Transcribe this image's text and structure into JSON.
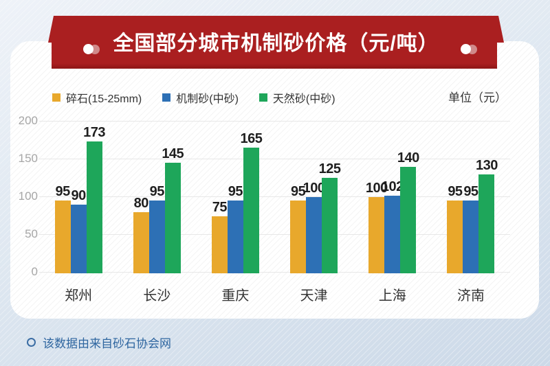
{
  "banner": {
    "title": "全国部分城市机制砂价格（元/吨）"
  },
  "legend": {
    "items": [
      {
        "label": "碎石(15-25mm)",
        "color": "#e8a82c"
      },
      {
        "label": "机制砂(中砂)",
        "color": "#2d70b5"
      },
      {
        "label": "天然砂(中砂)",
        "color": "#1ea65a"
      }
    ],
    "unit_label": "单位（元）"
  },
  "chart_data": {
    "type": "bar",
    "title": "全国部分城市机制砂价格（元/吨）",
    "categories": [
      "郑州",
      "长沙",
      "重庆",
      "天津",
      "上海",
      "济南"
    ],
    "series": [
      {
        "name": "碎石(15-25mm)",
        "color": "#e8a82c",
        "values": [
          95,
          80,
          75,
          95,
          100,
          95
        ]
      },
      {
        "name": "机制砂(中砂)",
        "color": "#2d70b5",
        "values": [
          90,
          95,
          95,
          100,
          102,
          95
        ]
      },
      {
        "name": "天然砂(中砂)",
        "color": "#1ea65a",
        "values": [
          173,
          145,
          165,
          125,
          140,
          130
        ]
      }
    ],
    "xlabel": "",
    "ylabel": "单位（元）",
    "ylim": [
      0,
      200
    ],
    "yticks": [
      0,
      50,
      100,
      150,
      200
    ],
    "grid": true,
    "legend_position": "top",
    "value_labels": true
  },
  "footer": {
    "note": "该数据由来自砂石协会网"
  },
  "colors": {
    "banner_red": "#aa1f20",
    "banner_red_dark": "#8d1616",
    "bar_yellow": "#e8a82c",
    "bar_blue": "#2d70b5",
    "bar_green": "#1ea65a",
    "gridline": "#e7e7e7",
    "axis_tick_text": "#a6a6a6",
    "value_label_text": "#1f1f1f",
    "footer_text": "#2f66a0",
    "card_bg": "#ffffff"
  }
}
